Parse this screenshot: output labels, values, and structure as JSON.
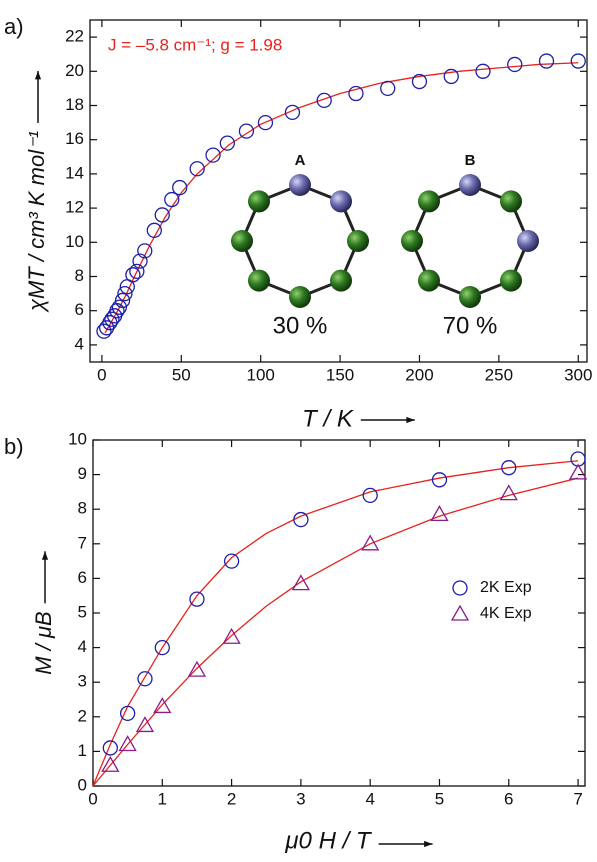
{
  "chart_data": [
    {
      "type": "scatter",
      "panel_label": "a)",
      "xlabel": "T / K",
      "ylabel": "χMT / cm³ K mol⁻¹",
      "annotation": "J = –5.8 cm⁻¹; g = 1.98",
      "xlim": [
        -7.5,
        305.5
      ],
      "ylim": [
        3,
        23
      ],
      "xticks": [
        0,
        50,
        100,
        150,
        200,
        250,
        300
      ],
      "yticks": [
        4,
        6,
        8,
        10,
        12,
        14,
        16,
        18,
        20,
        22
      ],
      "series": [
        {
          "color": "#1f1fa8",
          "marker": "circle",
          "x": [
            1.3,
            3,
            5,
            6.3,
            8,
            9.5,
            11,
            13,
            14.5,
            16,
            19.5,
            22,
            24,
            27,
            33,
            38,
            44,
            49,
            60,
            70,
            79,
            91,
            103,
            120,
            140,
            160,
            180,
            200,
            220,
            240,
            260,
            280,
            300
          ],
          "values": [
            4.8,
            5.0,
            5.3,
            5.5,
            5.7,
            6.0,
            6.2,
            6.6,
            7.0,
            7.4,
            8.1,
            8.3,
            8.9,
            9.5,
            10.7,
            11.6,
            12.5,
            13.2,
            14.3,
            15.1,
            15.8,
            16.5,
            17.0,
            17.6,
            18.3,
            18.7,
            19.0,
            19.4,
            19.7,
            20.0,
            20.4,
            20.6,
            20.6
          ]
        }
      ],
      "fits": [
        {
          "color": "#e8221e",
          "x": [
            2,
            5,
            10,
            15,
            20,
            30,
            40,
            50,
            60,
            80,
            100,
            125,
            150,
            175,
            200,
            225,
            250,
            275,
            300
          ],
          "values": [
            4.7,
            5.2,
            6.0,
            6.9,
            7.9,
            9.8,
            11.5,
            12.9,
            14.0,
            15.7,
            16.9,
            17.9,
            18.7,
            19.3,
            19.7,
            20.0,
            20.2,
            20.4,
            20.5
          ]
        }
      ],
      "inset": {
        "labels": [
          "A",
          "B"
        ],
        "percent": [
          "30 %",
          "70 %"
        ]
      }
    },
    {
      "type": "scatter",
      "panel_label": "b)",
      "xlabel": "μ0 H / T",
      "ylabel": "M / μB",
      "xlim": [
        0,
        7.1
      ],
      "ylim": [
        0,
        10
      ],
      "xticks": [
        0,
        1,
        2,
        3,
        4,
        5,
        6,
        7
      ],
      "yticks": [
        0,
        1,
        2,
        3,
        4,
        5,
        6,
        7,
        8,
        9,
        10
      ],
      "series": [
        {
          "name": "2K Exp",
          "color": "#1f1fa8",
          "marker": "circle",
          "x": [
            0.25,
            0.5,
            0.75,
            1,
            1.5,
            2,
            3,
            4,
            5,
            6,
            7
          ],
          "values": [
            1.1,
            2.1,
            3.1,
            4.0,
            5.4,
            6.5,
            7.7,
            8.4,
            8.85,
            9.2,
            9.45
          ]
        },
        {
          "name": "4K Exp",
          "color": "#8b1a8b",
          "marker": "triangle",
          "x": [
            0.25,
            0.5,
            0.75,
            1,
            1.5,
            2,
            3,
            4,
            5,
            6,
            7
          ],
          "values": [
            0.6,
            1.2,
            1.75,
            2.3,
            3.35,
            4.3,
            5.85,
            7.0,
            7.85,
            8.45,
            9.05
          ]
        }
      ],
      "fits": [
        {
          "color": "#e8221e",
          "x": [
            0,
            0.25,
            0.5,
            1,
            1.5,
            2,
            2.5,
            3,
            4,
            5,
            6,
            7
          ],
          "values": [
            0,
            1.2,
            2.3,
            4.0,
            5.5,
            6.6,
            7.3,
            7.8,
            8.5,
            8.9,
            9.2,
            9.4
          ]
        },
        {
          "color": "#e8221e",
          "x": [
            0,
            0.5,
            1,
            1.5,
            2,
            2.5,
            3,
            4,
            5,
            6,
            7
          ],
          "values": [
            0,
            1.2,
            2.35,
            3.4,
            4.35,
            5.2,
            5.9,
            7.0,
            7.8,
            8.4,
            8.9
          ]
        }
      ],
      "legend": "right"
    }
  ]
}
